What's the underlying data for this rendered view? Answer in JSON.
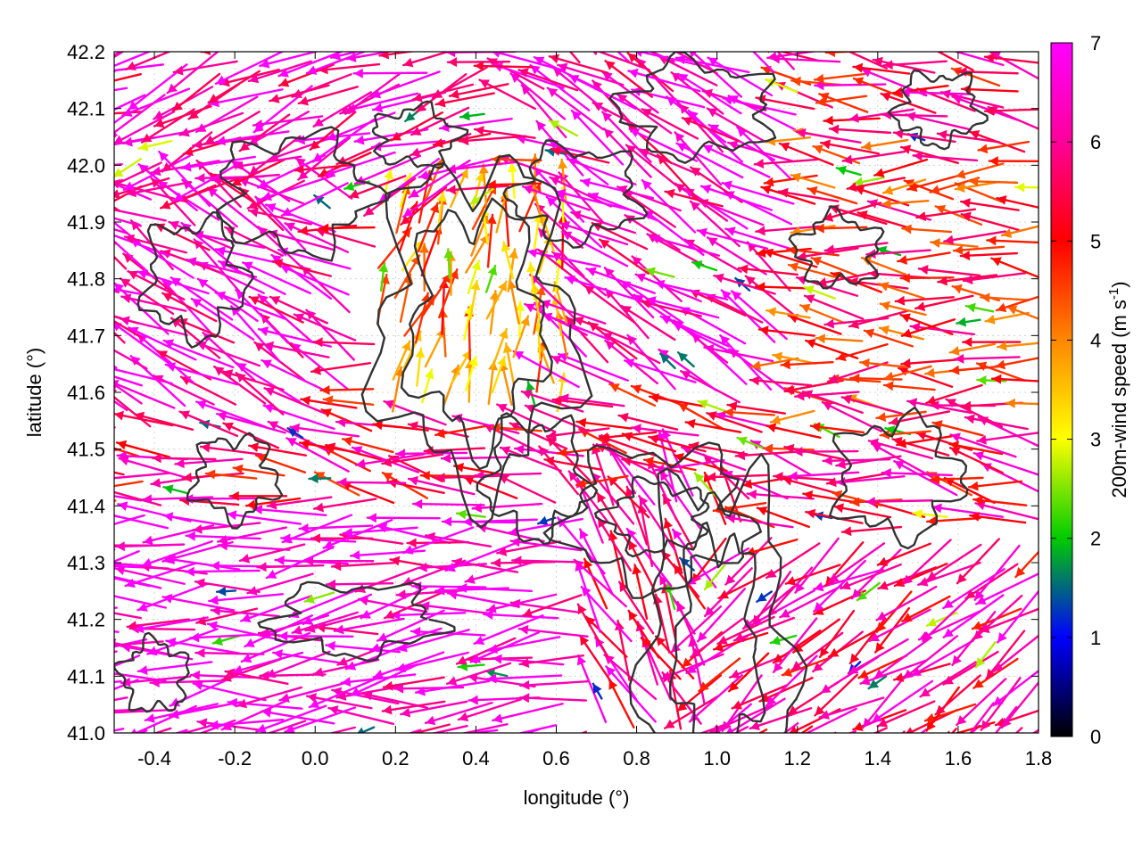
{
  "chart_data": {
    "type": "vector-field",
    "title": "",
    "xlabel": "longitude (°)",
    "ylabel": "latitude (°)",
    "xlim": [
      -0.5,
      1.8
    ],
    "ylim": [
      41.0,
      42.2
    ],
    "xticks": [
      "-0.4",
      "-0.2",
      "0.0",
      "0.2",
      "0.4",
      "0.6",
      "0.8",
      "1.0",
      "1.2",
      "1.4",
      "1.6",
      "1.8"
    ],
    "yticks": [
      "41.0",
      "41.1",
      "41.2",
      "41.3",
      "41.4",
      "41.5",
      "41.6",
      "41.7",
      "41.8",
      "41.9",
      "42.0",
      "42.1",
      "42.2"
    ],
    "grid": true,
    "colorbar": {
      "label_main": "200m-wind speed (m s",
      "label_sup": "-1",
      "label_end": ")",
      "range": [
        0,
        7
      ],
      "ticks": [
        "0",
        "1",
        "2",
        "3",
        "4",
        "5",
        "6",
        "7"
      ],
      "palette": [
        "#000000",
        "#0000ff",
        "#00cc00",
        "#ffff00",
        "#ff8800",
        "#ff0000",
        "#ff0099",
        "#ff00ff"
      ]
    },
    "contour_color": "#333333",
    "regions": [
      {
        "area": "northwest",
        "lon": [
          -0.5,
          0.4
        ],
        "lat": [
          41.95,
          42.2
        ],
        "direction": "toward southwest",
        "speed": [
          5.5,
          7
        ]
      },
      {
        "area": "west",
        "lon": [
          -0.5,
          0.1
        ],
        "lat": [
          41.55,
          41.95
        ],
        "direction": "toward southeast",
        "speed": [
          6,
          7
        ]
      },
      {
        "area": "center",
        "lon": [
          0.2,
          0.6
        ],
        "lat": [
          41.6,
          41.9
        ],
        "direction": "toward north",
        "speed": [
          3,
          5
        ]
      },
      {
        "area": "east",
        "lon": [
          1.2,
          1.8
        ],
        "lat": [
          41.6,
          42.0
        ],
        "direction": "toward west",
        "speed": [
          3.5,
          6
        ]
      },
      {
        "area": "southwest",
        "lon": [
          -0.5,
          0.6
        ],
        "lat": [
          41.0,
          41.4
        ],
        "direction": "toward west",
        "speed": [
          6,
          7
        ]
      },
      {
        "area": "southeast",
        "lon": [
          1.0,
          1.8
        ],
        "lat": [
          41.0,
          41.35
        ],
        "direction": "toward southwest",
        "speed": [
          5,
          6.5
        ]
      }
    ]
  }
}
